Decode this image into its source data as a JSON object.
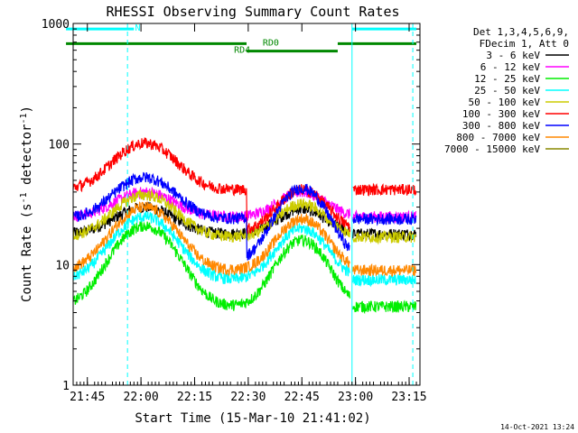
{
  "chart_data": {
    "type": "line",
    "title": "RHESSI Observing Summary Count Rates",
    "xlabel": "Start Time (15-Mar-10 21:41:02)",
    "ylabel_main": "Count Rate (s",
    "ylabel_sup1": "-1",
    "ylabel_mid": " detector",
    "ylabel_sup2": "-1",
    "ylabel_end": ")",
    "yscale": "log",
    "ylim": [
      1,
      1000
    ],
    "xlim_minutes": [
      0,
      97
    ],
    "x_ticks": [
      {
        "label": "21:45",
        "minute": 3.97
      },
      {
        "label": "22:00",
        "minute": 18.97
      },
      {
        "label": "22:15",
        "minute": 33.97
      },
      {
        "label": "22:30",
        "minute": 48.97
      },
      {
        "label": "22:45",
        "minute": 63.97
      },
      {
        "label": "23:00",
        "minute": 78.97
      },
      {
        "label": "23:15",
        "minute": 93.97
      }
    ],
    "y_ticks": [
      {
        "label": "1",
        "value": 1
      },
      {
        "label": "10",
        "value": 10
      },
      {
        "label": "100",
        "value": 100
      },
      {
        "label": "1000",
        "value": 1000
      }
    ],
    "legend_header": [
      "Det 1,3,4,5,6,9,",
      "FDecim 1, Att 0"
    ],
    "series": [
      {
        "name": "3 - 6 keV",
        "color": "#000000",
        "base": 18,
        "peak1": 30,
        "peak2": 29,
        "sat": 0
      },
      {
        "name": "6 - 12 keV",
        "color": "#ff00ff",
        "base": 25,
        "peak1": 40,
        "peak2": 40,
        "sat": 0
      },
      {
        "name": "12 - 25 keV",
        "color": "#00ee00",
        "base": 4.5,
        "peak1": 21,
        "peak2": 16,
        "sat": 0
      },
      {
        "name": "25 - 50 keV",
        "color": "#00ffff",
        "base": 7.5,
        "peak1": 25,
        "peak2": 20,
        "sat": 0
      },
      {
        "name": "50 - 100 keV",
        "color": "#cccc00",
        "base": 17,
        "peak1": 38,
        "peak2": 32,
        "sat": 0
      },
      {
        "name": "100 - 300 keV",
        "color": "#ff0000",
        "base": 42,
        "peak1": 102,
        "peak2": 42,
        "sat": 1
      },
      {
        "name": "300 - 800 keV",
        "color": "#0000ff",
        "base": 24,
        "peak1": 53,
        "peak2": 43,
        "sat": 1
      },
      {
        "name": "800 - 7000 keV",
        "color": "#ff8800",
        "base": 9,
        "peak1": 30,
        "peak2": 24,
        "sat": 0
      },
      {
        "name": "7000 - 15000 keV",
        "color": "#888800",
        "base": 0,
        "peak1": 0,
        "peak2": 0,
        "sat": 0
      }
    ],
    "flare_peak_minutes": [
      20,
      64
    ],
    "flare_widths_minutes": [
      7.5,
      6
    ],
    "night_gaps_minutes": [
      [
        -5,
        0
      ],
      [
        78,
        97
      ]
    ],
    "state_bars": [
      {
        "label": "N",
        "color": "#00ffff",
        "segments": [
          [
            -2,
            17
          ],
          [
            78,
            96
          ]
        ],
        "value": 900
      },
      {
        "label": "RD0",
        "color": "#008800",
        "segments": [
          [
            -2,
            48.5
          ],
          [
            74,
            96
          ]
        ],
        "value": 680
      },
      {
        "label": "RD4",
        "color": "#008800",
        "segments": [
          [
            48.5,
            74
          ]
        ],
        "value": 590
      }
    ],
    "vlines_solid_minutes": [
      0,
      78
    ],
    "vlines_dashed_minutes": [
      15.2,
      95
    ]
  },
  "footer_timestamp": "14-Oct-2021 13:24"
}
